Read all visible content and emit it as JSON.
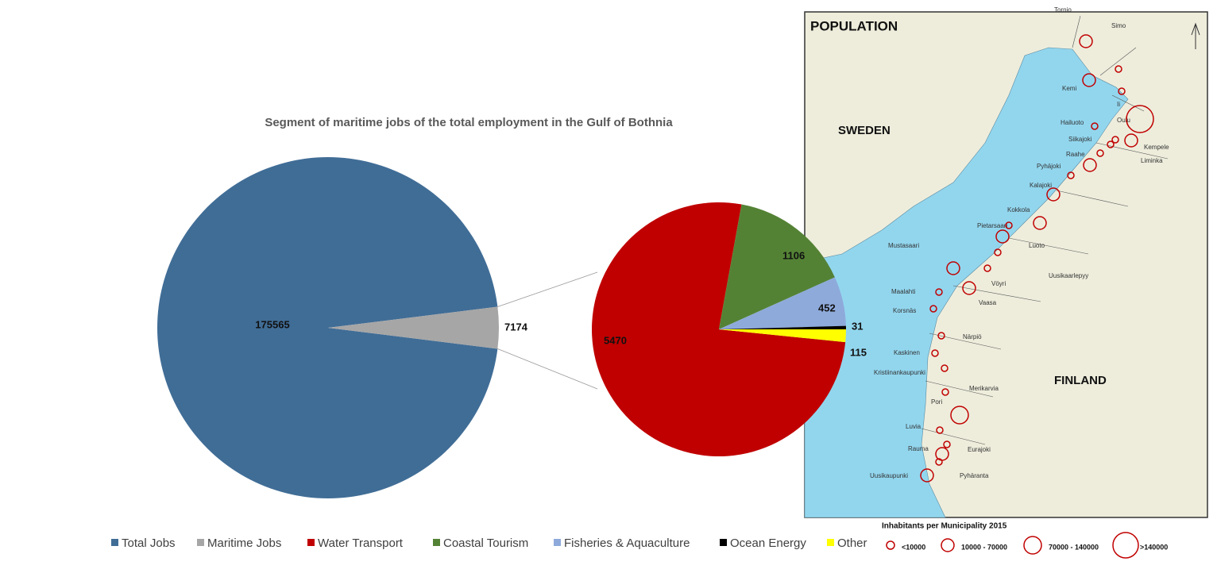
{
  "chart_data": {
    "type": "pie-of-pie",
    "title": "Segment of maritime jobs of the total employment in the Gulf of Bothnia",
    "categories": [
      "Total Jobs",
      "Maritime Jobs"
    ],
    "values": [
      175565,
      7174
    ],
    "colors": [
      "#406d96",
      "#a6a6a6"
    ],
    "breakdown": {
      "categories": [
        "Water Transport",
        "Coastal Tourism",
        "Fisheries & Aquaculture",
        "Ocean Energy",
        "Other"
      ],
      "values": [
        5470,
        1106,
        452,
        31,
        115
      ],
      "colors": [
        "#c00000",
        "#548235",
        "#8eaadb",
        "#000000",
        "#ffff00"
      ]
    }
  },
  "map": {
    "title": "POPULATION",
    "countries": [
      "SWEDEN",
      "FINLAND"
    ],
    "places": [
      "Tornio",
      "Simo",
      "Kemi",
      "Ii",
      "Oulu",
      "Hailuoto",
      "Siikajoki",
      "Kempele",
      "Raahe",
      "Liminka",
      "Pyhäjoki",
      "Kalajoki",
      "Kokkola",
      "Pietarsaari",
      "Luoto",
      "Mustasaari",
      "Uusikaarlepyy",
      "Vöyri",
      "Maalahti",
      "Vaasa",
      "Korsnäs",
      "Närpiö",
      "Kaskinen",
      "Kristiinankaupunki",
      "Merikarvia",
      "Pori",
      "Luvia",
      "Eurajoki",
      "Rauma",
      "Pyhäranta",
      "Uusikaupunki"
    ],
    "legend_title": "Inhabitants per Municipality 2015",
    "legend_classes": [
      "<10000",
      "10000 - 70000",
      "70000 - 140000",
      ">140000"
    ]
  }
}
